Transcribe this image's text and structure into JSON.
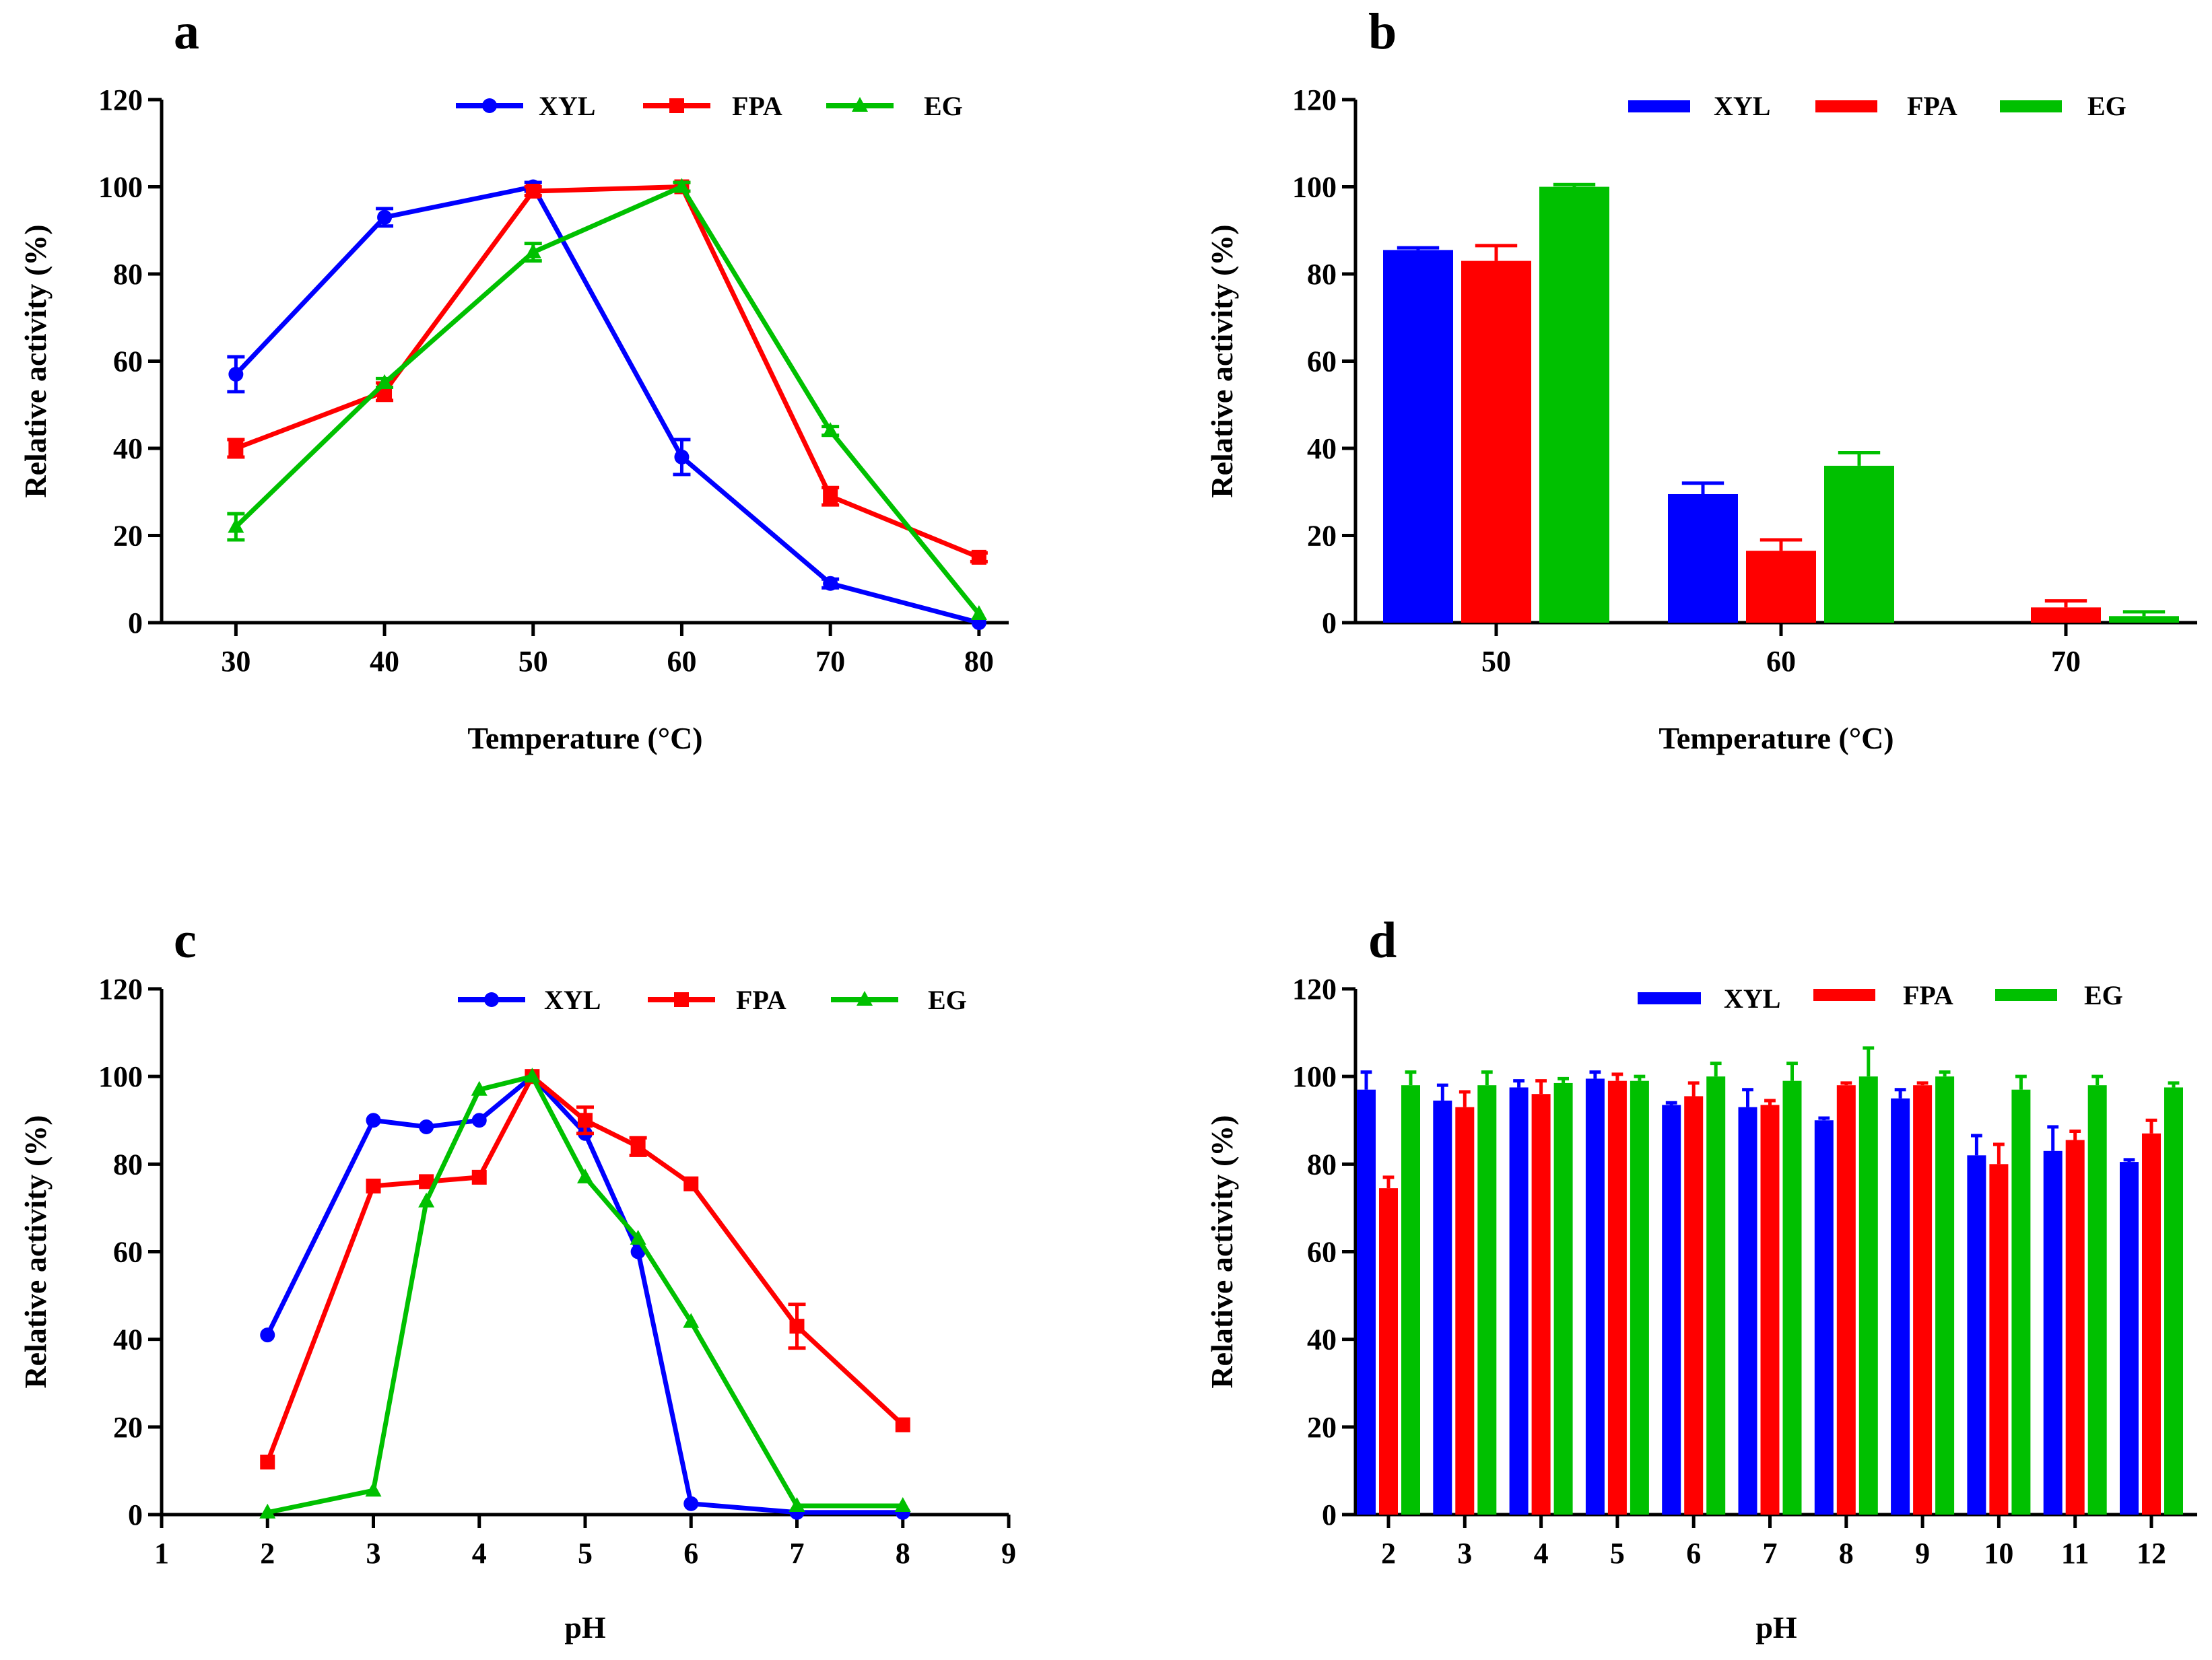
{
  "colors": {
    "XYL": "#0000ff",
    "FPA": "#ff0000",
    "EG": "#00c000"
  },
  "chart_data": [
    {
      "panel": "a",
      "type": "line",
      "xlabel": "Temperature (°C)",
      "ylabel": "Relative activity (%)",
      "xlim": [
        25,
        82
      ],
      "ylim": [
        0,
        120
      ],
      "xticks": [
        "30",
        "40",
        "50",
        "60",
        "70",
        "80"
      ],
      "yticks": [
        "0",
        "20",
        "40",
        "60",
        "80",
        "100",
        "120"
      ],
      "x": [
        30,
        40,
        50,
        60,
        70,
        80
      ],
      "series": [
        {
          "name": "XYL",
          "marker": "circle",
          "values": [
            57,
            93,
            100,
            38,
            9,
            0
          ],
          "errors": [
            4,
            2,
            1,
            4,
            1,
            0
          ]
        },
        {
          "name": "FPA",
          "marker": "square",
          "values": [
            40,
            53,
            99,
            100,
            29,
            15
          ],
          "errors": [
            2,
            2,
            1,
            1,
            2,
            1
          ]
        },
        {
          "name": "EG",
          "marker": "triangle",
          "values": [
            22,
            55,
            85,
            100,
            44,
            2
          ],
          "errors": [
            3,
            1,
            2,
            1,
            1,
            0
          ]
        }
      ]
    },
    {
      "panel": "b",
      "type": "bar",
      "xlabel": "Temperature (°C)",
      "ylabel": "Relative activity (%)",
      "ylim": [
        0,
        120
      ],
      "yticks": [
        "0",
        "20",
        "40",
        "60",
        "80",
        "100",
        "120"
      ],
      "categories": [
        "50",
        "60",
        "70"
      ],
      "series": [
        {
          "name": "XYL",
          "values": [
            85.5,
            29.5,
            0
          ],
          "errors": [
            0.5,
            2.5,
            0
          ]
        },
        {
          "name": "FPA",
          "values": [
            83,
            16.5,
            3.5
          ],
          "errors": [
            3.5,
            2.5,
            1.5
          ]
        },
        {
          "name": "EG",
          "values": [
            100,
            36,
            1.5
          ],
          "errors": [
            0.5,
            3,
            1
          ]
        }
      ]
    },
    {
      "panel": "c",
      "type": "line",
      "xlabel": "pH",
      "ylabel": "Relative activity (%)",
      "xlim": [
        1,
        9
      ],
      "ylim": [
        0,
        120
      ],
      "xticks": [
        "1",
        "2",
        "3",
        "4",
        "5",
        "6",
        "7",
        "8",
        "9"
      ],
      "yticks": [
        "0",
        "20",
        "40",
        "60",
        "80",
        "100",
        "120"
      ],
      "x": [
        2,
        3,
        3.5,
        4,
        4.5,
        5,
        5.5,
        6,
        7,
        8
      ],
      "series": [
        {
          "name": "XYL",
          "marker": "circle",
          "values": [
            41,
            90,
            88.5,
            90,
            100,
            87,
            60,
            2.5,
            0.5,
            0.5
          ],
          "errors": [
            0,
            0,
            0,
            0,
            0,
            0,
            0,
            0,
            0,
            0
          ]
        },
        {
          "name": "FPA",
          "marker": "square",
          "values": [
            12,
            75,
            76,
            77,
            100,
            90,
            84,
            75.5,
            43,
            20.5
          ],
          "errors": [
            0,
            0,
            0,
            0,
            0,
            3,
            2,
            0,
            5,
            0
          ]
        },
        {
          "name": "EG",
          "marker": "triangle",
          "values": [
            0.5,
            5.5,
            71.5,
            97,
            100,
            77,
            63,
            44,
            2,
            2
          ],
          "errors": [
            0,
            0,
            0,
            0,
            0,
            0,
            0,
            0,
            0,
            0
          ]
        }
      ]
    },
    {
      "panel": "d",
      "type": "bar",
      "xlabel": "pH",
      "ylabel": "Relative activity (%)",
      "ylim": [
        0,
        120
      ],
      "yticks": [
        "0",
        "20",
        "40",
        "60",
        "80",
        "100",
        "120"
      ],
      "categories": [
        "2",
        "3",
        "4",
        "5",
        "6",
        "7",
        "8",
        "9",
        "10",
        "11",
        "12"
      ],
      "series": [
        {
          "name": "XYL",
          "values": [
            97,
            94.5,
            97.5,
            99.5,
            93.5,
            93,
            90,
            95,
            82,
            83,
            80.5
          ],
          "errors": [
            4,
            3.5,
            1.5,
            1.5,
            0.5,
            4,
            0.5,
            2,
            4.5,
            5.5,
            0.5
          ]
        },
        {
          "name": "FPA",
          "values": [
            74.5,
            93,
            96,
            99,
            95.5,
            93.5,
            98,
            98,
            80,
            85.5,
            87
          ],
          "errors": [
            2.5,
            3.5,
            3,
            1.5,
            3,
            1,
            0.5,
            0.5,
            4.5,
            2,
            3
          ]
        },
        {
          "name": "EG",
          "values": [
            98,
            98,
            98.5,
            99,
            100,
            99,
            100,
            100,
            97,
            98,
            97.5
          ],
          "errors": [
            3,
            3,
            1,
            1,
            3,
            4,
            6.5,
            1,
            3,
            2,
            1
          ]
        }
      ]
    }
  ]
}
